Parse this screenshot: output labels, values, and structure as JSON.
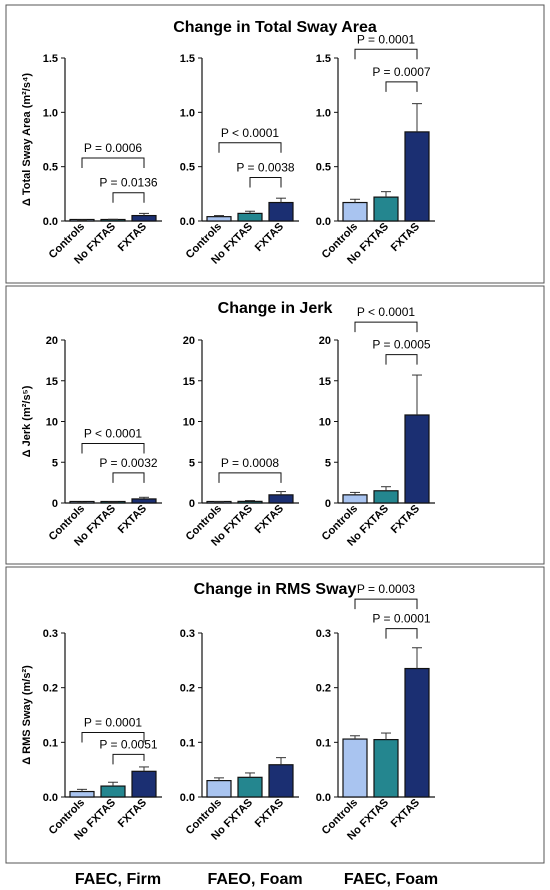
{
  "page": {
    "colors": {
      "controls": "#a9c4f0",
      "no_fxtas": "#24868f",
      "fxtas": "#1b2f72",
      "border": "#555555"
    },
    "condition_labels": [
      "FAEC, Firm",
      "FAEO, Foam",
      "FAEC, Foam"
    ]
  },
  "chart_data": [
    {
      "type": "bar",
      "title": "Change in Total Sway Area",
      "ylabel": "Δ Total Sway Area (m²/s⁴)",
      "charts": [
        {
          "condition": "FAEC, Firm",
          "categories": [
            "Controls",
            "No FXTAS",
            "FXTAS"
          ],
          "values": [
            0.003,
            0.008,
            0.05
          ],
          "errors": [
            0.004,
            0.008,
            0.02
          ],
          "ylim": [
            0,
            1.5
          ],
          "yticks": [
            "0.0",
            "0.5",
            "1.0",
            "1.5"
          ],
          "ytick_values": [
            0,
            0.5,
            1.0,
            1.5
          ],
          "annotations": [
            {
              "text": "P = 0.0006",
              "from": 0,
              "to": 2,
              "level": 0.58
            },
            {
              "text": "P = 0.0136",
              "from": 1,
              "to": 2,
              "level": 0.26
            }
          ]
        },
        {
          "condition": "FAEO, Foam",
          "categories": [
            "Controls",
            "No FXTAS",
            "FXTAS"
          ],
          "values": [
            0.04,
            0.07,
            0.17
          ],
          "errors": [
            0.01,
            0.02,
            0.04
          ],
          "ylim": [
            0,
            1.5
          ],
          "yticks": [
            "0.0",
            "0.5",
            "1.0",
            "1.5"
          ],
          "ytick_values": [
            0,
            0.5,
            1.0,
            1.5
          ],
          "annotations": [
            {
              "text": "P < 0.0001",
              "from": 0,
              "to": 2,
              "level": 0.72
            },
            {
              "text": "P = 0.0038",
              "from": 1,
              "to": 2,
              "level": 0.4
            }
          ]
        },
        {
          "condition": "FAEC, Foam",
          "categories": [
            "Controls",
            "No FXTAS",
            "FXTAS"
          ],
          "values": [
            0.17,
            0.22,
            0.82
          ],
          "errors": [
            0.03,
            0.05,
            0.26
          ],
          "ylim": [
            0,
            1.5
          ],
          "yticks": [
            "0.0",
            "0.5",
            "1.0",
            "1.5"
          ],
          "ytick_values": [
            0,
            0.5,
            1.0,
            1.5
          ],
          "annotations": [
            {
              "text": "P = 0.0001",
              "from": 0,
              "to": 2,
              "level": 1.58
            },
            {
              "text": "P = 0.0007",
              "from": 1,
              "to": 2,
              "level": 1.28
            }
          ]
        }
      ]
    },
    {
      "type": "bar",
      "title": "Change in Jerk",
      "ylabel": "Δ Jerk (m²/s⁵)",
      "charts": [
        {
          "condition": "FAEC, Firm",
          "categories": [
            "Controls",
            "No FXTAS",
            "FXTAS"
          ],
          "values": [
            0.02,
            0.05,
            0.5
          ],
          "errors": [
            0.03,
            0.05,
            0.2
          ],
          "ylim": [
            0,
            20
          ],
          "yticks": [
            "0",
            "5",
            "10",
            "15",
            "20"
          ],
          "ytick_values": [
            0,
            5,
            10,
            15,
            20
          ],
          "annotations": [
            {
              "text": "P < 0.0001",
              "from": 0,
              "to": 2,
              "level": 7.3
            },
            {
              "text": "P = 0.0032",
              "from": 1,
              "to": 2,
              "level": 3.7
            }
          ]
        },
        {
          "condition": "FAEO, Foam",
          "categories": [
            "Controls",
            "No FXTAS",
            "FXTAS"
          ],
          "values": [
            0.1,
            0.2,
            1.0
          ],
          "errors": [
            0.05,
            0.1,
            0.4
          ],
          "ylim": [
            0,
            20
          ],
          "yticks": [
            "0",
            "5",
            "10",
            "15",
            "20"
          ],
          "ytick_values": [
            0,
            5,
            10,
            15,
            20
          ],
          "annotations": [
            {
              "text": "P = 0.0008",
              "from": 0,
              "to": 2,
              "level": 3.7
            }
          ]
        },
        {
          "condition": "FAEC, Foam",
          "categories": [
            "Controls",
            "No FXTAS",
            "FXTAS"
          ],
          "values": [
            1.0,
            1.5,
            10.8
          ],
          "errors": [
            0.3,
            0.5,
            4.9
          ],
          "ylim": [
            0,
            20
          ],
          "yticks": [
            "0",
            "5",
            "10",
            "15",
            "20"
          ],
          "ytick_values": [
            0,
            5,
            10,
            15,
            20
          ],
          "annotations": [
            {
              "text": "P < 0.0001",
              "from": 0,
              "to": 2,
              "level": 22.2
            },
            {
              "text": "P = 0.0005",
              "from": 1,
              "to": 2,
              "level": 18.2
            }
          ]
        }
      ]
    },
    {
      "type": "bar",
      "title": "Change in RMS Sway",
      "ylabel": "Δ RMS Sway (m/s²)",
      "charts": [
        {
          "condition": "FAEC, Firm",
          "categories": [
            "Controls",
            "No FXTAS",
            "FXTAS"
          ],
          "values": [
            0.01,
            0.02,
            0.047
          ],
          "errors": [
            0.004,
            0.007,
            0.008
          ],
          "ylim": [
            0,
            0.3
          ],
          "yticks": [
            "0.0",
            "0.1",
            "0.2",
            "0.3"
          ],
          "ytick_values": [
            0,
            0.1,
            0.2,
            0.3
          ],
          "annotations": [
            {
              "text": "P = 0.0001",
              "from": 0,
              "to": 2,
              "level": 0.118
            },
            {
              "text": "P = 0.0051",
              "from": 1,
              "to": 2,
              "level": 0.078
            }
          ]
        },
        {
          "condition": "FAEO, Foam",
          "categories": [
            "Controls",
            "No FXTAS",
            "FXTAS"
          ],
          "values": [
            0.03,
            0.036,
            0.059
          ],
          "errors": [
            0.005,
            0.008,
            0.013
          ],
          "ylim": [
            0,
            0.3
          ],
          "yticks": [
            "0.0",
            "0.1",
            "0.2",
            "0.3"
          ],
          "ytick_values": [
            0,
            0.1,
            0.2,
            0.3
          ],
          "annotations": []
        },
        {
          "condition": "FAEC, Foam",
          "categories": [
            "Controls",
            "No FXTAS",
            "FXTAS"
          ],
          "values": [
            0.106,
            0.105,
            0.235
          ],
          "errors": [
            0.006,
            0.012,
            0.038
          ],
          "ylim": [
            0,
            0.3
          ],
          "yticks": [
            "0.0",
            "0.1",
            "0.2",
            "0.3"
          ],
          "ytick_values": [
            0,
            0.1,
            0.2,
            0.3
          ],
          "annotations": [
            {
              "text": "P = 0.0003",
              "from": 0,
              "to": 2,
              "level": 0.362
            },
            {
              "text": "P = 0.0001",
              "from": 1,
              "to": 2,
              "level": 0.308
            }
          ]
        }
      ]
    }
  ]
}
